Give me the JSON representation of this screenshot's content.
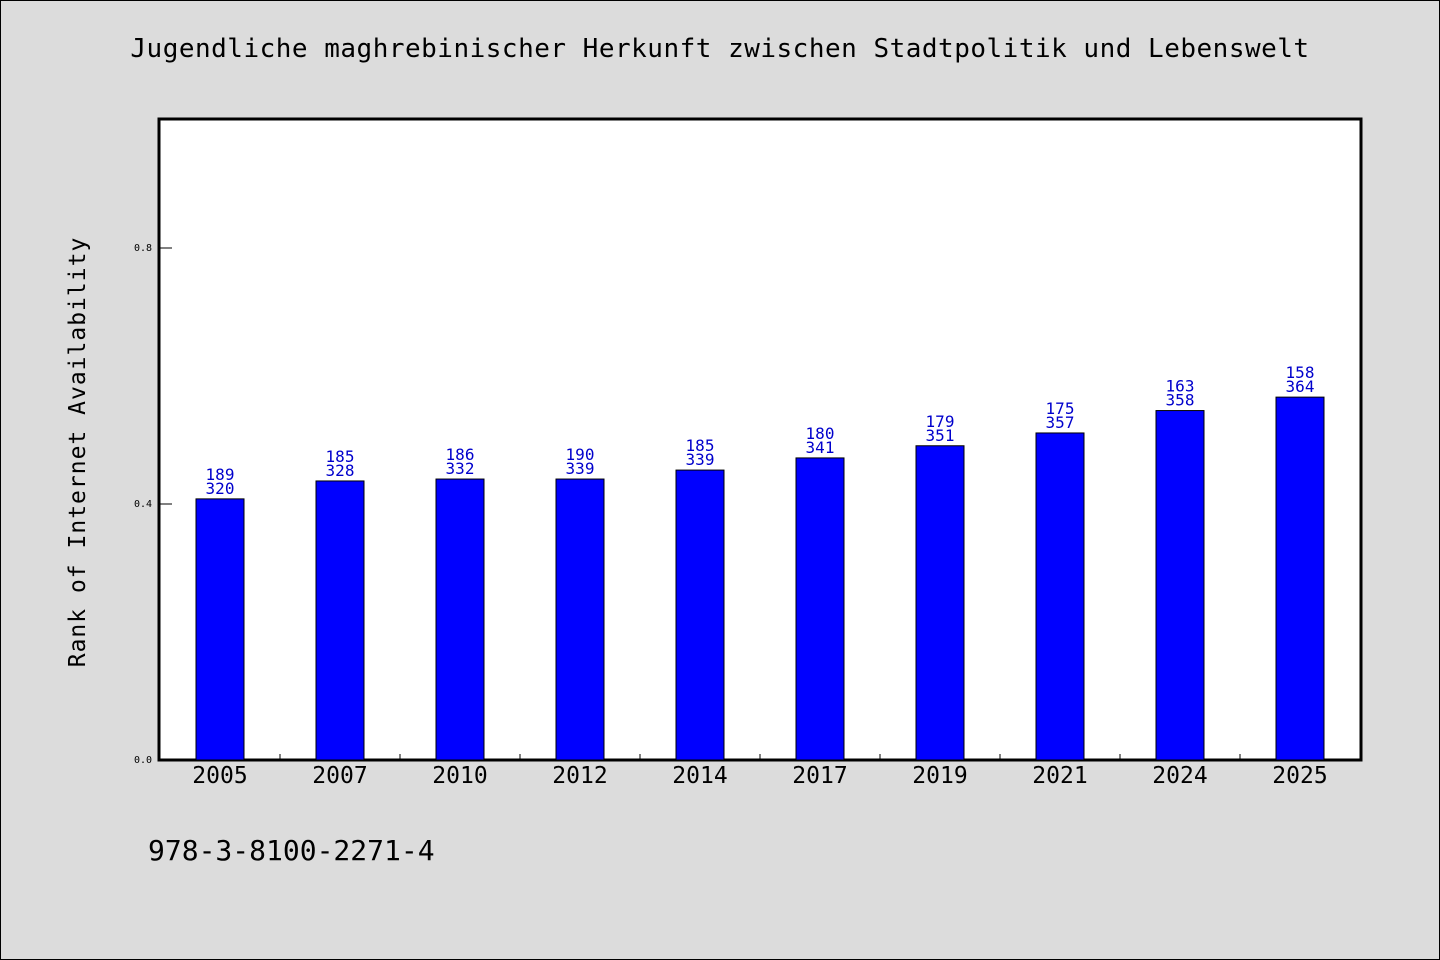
{
  "chart_data": {
    "type": "bar",
    "title": "Jugendliche maghrebinischer Herkunft zwischen Stadtpolitik und Lebenswelt",
    "ylabel": "Rank of Internet Availability",
    "xlabel": "",
    "categories": [
      "2005",
      "2007",
      "2010",
      "2012",
      "2014",
      "2017",
      "2019",
      "2021",
      "2024",
      "2025"
    ],
    "values": [
      0.408,
      0.436,
      0.439,
      0.439,
      0.453,
      0.472,
      0.491,
      0.511,
      0.546,
      0.567
    ],
    "data_labels_top": [
      "189",
      "185",
      "186",
      "190",
      "185",
      "180",
      "179",
      "175",
      "163",
      "158"
    ],
    "data_labels_bottom": [
      "320",
      "328",
      "332",
      "339",
      "339",
      "341",
      "351",
      "357",
      "358",
      "364"
    ],
    "ylim": [
      0,
      1.0
    ],
    "yticks": [
      "0.0",
      "0.4",
      "0.8"
    ],
    "ytick_values": [
      0.0,
      0.4,
      0.8
    ],
    "grid": false,
    "bar_color": "#0000ff",
    "label_color": "#0000cc"
  },
  "footer": {
    "isbn": "978-3-8100-2271-4"
  }
}
